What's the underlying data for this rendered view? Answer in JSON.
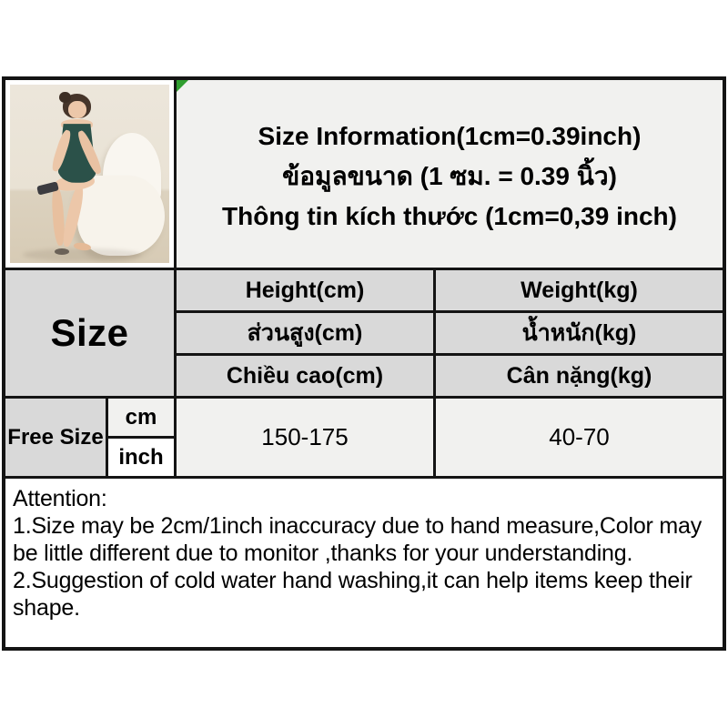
{
  "header": {
    "title_en": "Size Information(1cm=0.39inch)",
    "title_th": "ข้อมูลขนาด (1 ซม. = 0.39 นิ้ว)",
    "title_vi": "Thông tin kích thước (1cm=0,39 inch)"
  },
  "table": {
    "size_header": "Size",
    "height_col": {
      "en": "Height(cm)",
      "th": "ส่วนสูง(cm)",
      "vi": "Chiều cao(cm)"
    },
    "weight_col": {
      "en": "Weight(kg)",
      "th": "น้ำหนัก(kg)",
      "vi": "Cân nặng(kg)"
    },
    "row": {
      "size": "Free Size",
      "unit_cm": "cm",
      "unit_inch": "inch",
      "height_range": "150-175",
      "weight_range": "40-70"
    }
  },
  "attention": {
    "heading": "Attention:",
    "note_1": "1.Size may be 2cm/1inch inaccuracy due to hand measure,Color may be little different due to monitor ,thanks for your understanding.",
    "note_2": "2.Suggestion of cold water hand washing,it can help items keep their shape."
  },
  "photo": {
    "description": "Model sitting on a white sculptural chair wearing a dark green satin slip nightdress"
  },
  "colors": {
    "header_cell_bg": "#d9d9d9",
    "light_cell_bg": "#f1f1ef",
    "border": "#141414",
    "accent_green": "#2f9e2f",
    "dress_green": "#2b5149"
  }
}
